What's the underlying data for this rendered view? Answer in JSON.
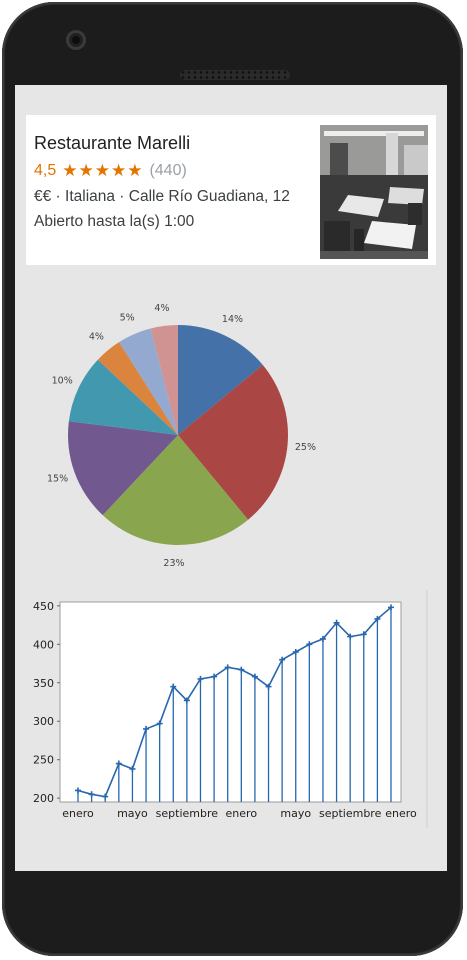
{
  "restaurant": {
    "name": "Restaurante Marelli",
    "rating": "4,5",
    "stars": "★★★★★",
    "reviews": "(440)",
    "price_cuisine_address": "€€ · Italiana · Calle Río Guadiana, 12",
    "hours": "Abierto hasta la(s) 1:00"
  },
  "colors": {
    "rating_accent": "#e37400",
    "line_series": "#2767ad"
  },
  "chart_data": [
    {
      "type": "pie",
      "slices": [
        {
          "label": "14%",
          "value": 14,
          "color": "#4472a8"
        },
        {
          "label": "25%",
          "value": 25,
          "color": "#aa4644"
        },
        {
          "label": "23%",
          "value": 23,
          "color": "#89a54e"
        },
        {
          "label": "15%",
          "value": 15,
          "color": "#71588f"
        },
        {
          "label": "10%",
          "value": 10,
          "color": "#4298af"
        },
        {
          "label": "4%",
          "value": 4,
          "color": "#db843d"
        },
        {
          "label": "5%",
          "value": 5,
          "color": "#93a9cf"
        },
        {
          "label": "4%",
          "value": 4,
          "color": "#d19392"
        }
      ]
    },
    {
      "type": "line",
      "x_tick_labels": [
        "enero",
        "mayo",
        "septiembre",
        "enero",
        "mayo",
        "septiembre",
        "enero"
      ],
      "x_tick_index": [
        0,
        4,
        8,
        12,
        16,
        20,
        24
      ],
      "values": [
        210,
        205,
        202,
        245,
        238,
        290,
        297,
        345,
        327,
        355,
        358,
        370,
        367,
        358,
        345,
        380,
        390,
        400,
        407,
        428,
        410,
        413,
        433,
        448
      ],
      "ylim": [
        195,
        455
      ],
      "y_ticks": [
        200,
        250,
        300,
        350,
        400,
        450
      ],
      "drop_lines": true
    }
  ]
}
